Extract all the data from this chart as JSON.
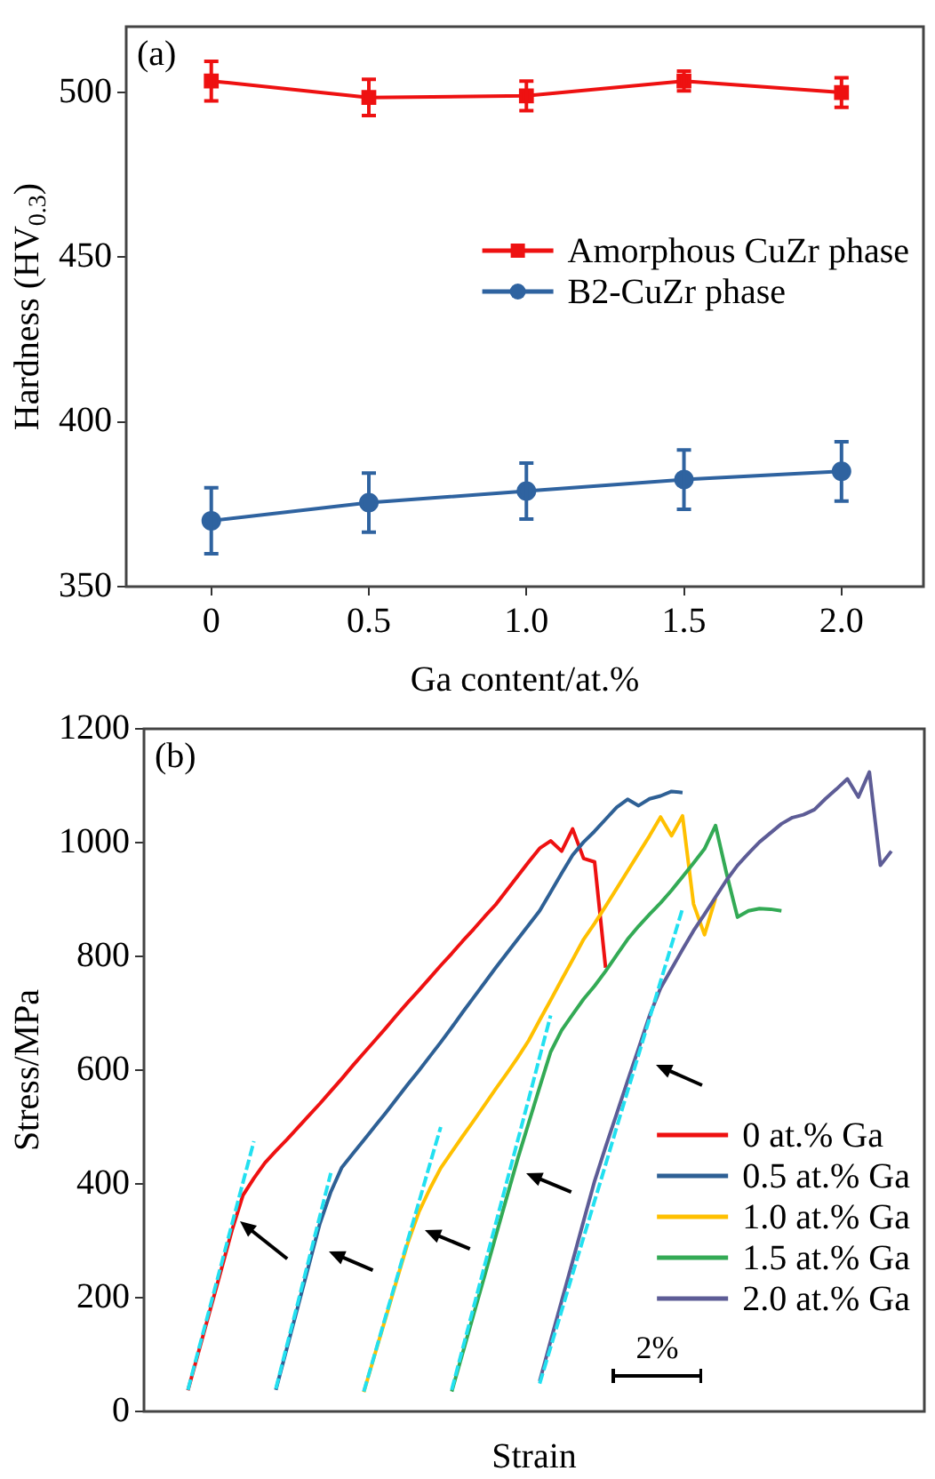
{
  "chart_data": [
    {
      "type": "line",
      "ylabel": "Hardness (HV$_{0.3}$)",
      "xlabel": "Ga content/at.%",
      "annotations": [
        "(a)"
      ],
      "x": [
        0,
        0.5,
        1,
        1.5,
        2
      ],
      "xlim": [
        -0.27,
        2.26
      ],
      "xticks": [
        0,
        0.5,
        {
          "value": 1,
          "label": "1.0"
        },
        1.5,
        {
          "value": 2,
          "label": "2.0"
        }
      ],
      "ylim": [
        350,
        520
      ],
      "yticks": [
        350,
        400,
        450,
        500
      ],
      "grid": false,
      "legend": "right",
      "series": [
        {
          "name": "Amorphous CuZr phase",
          "color": "#ee1111",
          "marker": "square",
          "values": [
            503.5,
            498.5,
            499,
            503.5,
            500
          ],
          "errors": [
            6,
            5.5,
            4.5,
            3,
            4.5
          ]
        },
        {
          "name": "B2-CuZr phase",
          "color": "#2f63a0",
          "marker": "circle",
          "values": [
            370,
            375.5,
            379,
            382.5,
            385
          ],
          "errors": [
            10,
            9,
            8.5,
            9,
            9
          ]
        }
      ]
    },
    {
      "type": "line",
      "ylabel": "Stress/MPa",
      "xlabel": "Strain",
      "annotations": [
        "(b)",
        "2%"
      ],
      "categories": [
        null,
        null,
        null,
        null,
        null,
        null,
        null,
        null,
        null,
        null,
        null,
        null,
        null,
        null,
        null,
        null,
        null,
        null,
        null,
        null,
        null,
        null,
        null,
        null,
        null,
        null,
        null,
        null,
        null,
        null,
        null,
        null,
        null,
        null,
        null,
        null,
        null,
        null,
        null,
        null,
        null,
        null,
        null,
        null,
        null,
        null,
        null,
        null,
        null,
        null,
        null,
        null,
        null,
        null,
        null,
        null,
        null,
        null,
        null,
        null,
        null,
        null,
        null,
        null,
        null,
        null,
        null,
        null,
        null,
        null,
        null,
        null
      ],
      "ylim": [
        0,
        1200
      ],
      "yticks": [
        0,
        200,
        400,
        600,
        800,
        1000,
        1200
      ],
      "tick_labels": "y",
      "grid": false,
      "legend": "bottom right",
      "series": [
        {
          "name": "0 at.% Ga",
          "color": "#ee1111",
          "values": [
            null,
            null,
            null,
            null,
            37,
            107,
            177,
            247,
            318,
            380,
            410,
            437,
            458,
            478,
            499,
            520,
            541,
            563,
            585,
            608,
            630,
            652,
            674,
            697,
            719,
            740,
            762,
            784,
            805,
            827,
            848,
            870,
            891,
            916,
            941,
            966,
            990,
            1003,
            985,
            1024,
            972,
            966,
            780,
            null,
            null,
            null,
            null,
            null,
            null,
            null,
            null,
            null,
            null,
            null,
            null,
            null,
            null,
            null,
            null,
            null,
            null,
            null,
            null,
            null,
            null,
            null,
            null,
            null,
            null,
            null,
            null,
            null
          ]
        },
        {
          "name": "0.5 at.% Ga",
          "color": "#2e6095",
          "values": [
            null,
            null,
            null,
            null,
            null,
            null,
            null,
            null,
            null,
            null,
            null,
            null,
            38,
            111,
            184,
            257,
            330,
            386,
            429,
            453,
            477,
            501,
            525,
            550,
            575,
            599,
            624,
            649,
            675,
            702,
            728,
            754,
            780,
            805,
            830,
            855,
            880,
            913,
            946,
            978,
            1001,
            1020,
            1041,
            1062,
            1076,
            1065,
            1077,
            1082,
            1090,
            1088,
            null,
            null,
            null,
            null,
            null,
            null,
            null,
            null,
            null,
            null,
            null,
            null,
            null,
            null,
            null,
            null,
            null,
            null,
            null,
            null,
            null,
            null
          ]
        },
        {
          "name": "1.0 at.% Ga",
          "color": "#ffc000",
          "values": [
            null,
            null,
            null,
            null,
            null,
            null,
            null,
            null,
            null,
            null,
            null,
            null,
            null,
            null,
            null,
            null,
            null,
            null,
            null,
            null,
            34,
            100,
            165,
            231,
            296,
            350,
            391,
            428,
            456,
            484,
            511,
            539,
            567,
            594,
            622,
            652,
            688,
            723,
            759,
            794,
            830,
            858,
            888,
            919,
            950,
            981,
            1012,
            1045,
            1012,
            1047,
            892,
            838,
            902,
            null,
            null,
            null,
            null,
            null,
            null,
            null,
            null,
            null,
            null,
            null,
            null,
            null,
            null,
            null,
            null,
            null,
            null,
            null
          ]
        },
        {
          "name": "1.5 at.% Ga",
          "color": "#33aa55",
          "values": [
            null,
            null,
            null,
            null,
            null,
            null,
            null,
            null,
            null,
            null,
            null,
            null,
            null,
            null,
            null,
            null,
            null,
            null,
            null,
            null,
            null,
            null,
            null,
            null,
            null,
            null,
            null,
            null,
            35,
            103,
            171,
            239,
            308,
            376,
            444,
            507,
            570,
            632,
            670,
            698,
            725,
            748,
            774,
            802,
            830,
            853,
            874,
            894,
            916,
            940,
            964,
            989,
            1030,
            946,
            869,
            880,
            884,
            883,
            880,
            null,
            null,
            null,
            null,
            null,
            null,
            null,
            null,
            null,
            null,
            null,
            null,
            null
          ]
        },
        {
          "name": "2.0 at.% Ga",
          "color": "#5d5c96",
          "values": [
            null,
            null,
            null,
            null,
            null,
            null,
            null,
            null,
            null,
            null,
            null,
            null,
            null,
            null,
            null,
            null,
            null,
            null,
            null,
            null,
            null,
            null,
            null,
            null,
            null,
            null,
            null,
            null,
            null,
            null,
            null,
            null,
            null,
            null,
            null,
            null,
            53,
            124,
            194,
            264,
            335,
            405,
            465,
            523,
            581,
            638,
            696,
            744,
            778,
            812,
            845,
            874,
            904,
            934,
            960,
            981,
            1001,
            1017,
            1033,
            1044,
            1049,
            1058,
            1077,
            1094,
            1112,
            1080,
            1124,
            960,
            985,
            null,
            null,
            null
          ]
        },
        {
          "color": "#22e0f0",
          "line_style": "dashed",
          "values": [
            null,
            null,
            null,
            null,
            38,
            111,
            183,
            256,
            329,
            402,
            475,
            null,
            null,
            null,
            null,
            null,
            null,
            null,
            null,
            null,
            null,
            null,
            null,
            null,
            null,
            null,
            null,
            null,
            null,
            null,
            null,
            null,
            null,
            null,
            null,
            null,
            null,
            null,
            null,
            null,
            null,
            null,
            null,
            null,
            null,
            null,
            null,
            null,
            null,
            null,
            null,
            null,
            null,
            null,
            null,
            null,
            null,
            null,
            null,
            null,
            null,
            null,
            null,
            null,
            null,
            null,
            null,
            null,
            null,
            null,
            null,
            null
          ]
        },
        {
          "color": "#22e0f0",
          "line_style": "dashed",
          "values": [
            null,
            null,
            null,
            null,
            null,
            null,
            null,
            null,
            null,
            null,
            null,
            null,
            40,
            116,
            191,
            267,
            343,
            419,
            null,
            null,
            null,
            null,
            null,
            null,
            null,
            null,
            null,
            null,
            null,
            null,
            null,
            null,
            null,
            null,
            null,
            null,
            null,
            null,
            null,
            null,
            null,
            null,
            null,
            null,
            null,
            null,
            null,
            null,
            null,
            null,
            null,
            null,
            null,
            null,
            null,
            null,
            null,
            null,
            null,
            null,
            null,
            null,
            null,
            null,
            null,
            null,
            null,
            null,
            null,
            null,
            null,
            null
          ]
        },
        {
          "color": "#22e0f0",
          "line_style": "dashed",
          "values": [
            null,
            null,
            null,
            null,
            null,
            null,
            null,
            null,
            null,
            null,
            null,
            null,
            null,
            null,
            null,
            null,
            null,
            null,
            null,
            null,
            35,
            101,
            168,
            234,
            301,
            367,
            434,
            500,
            null,
            null,
            null,
            null,
            null,
            null,
            null,
            null,
            null,
            null,
            null,
            null,
            null,
            null,
            null,
            null,
            null,
            null,
            null,
            null,
            null,
            null,
            null,
            null,
            null,
            null,
            null,
            null,
            null,
            null,
            null,
            null,
            null,
            null,
            null,
            null,
            null,
            null,
            null,
            null,
            null,
            null,
            null,
            null
          ]
        },
        {
          "color": "#22e0f0",
          "line_style": "dashed",
          "values": [
            null,
            null,
            null,
            null,
            null,
            null,
            null,
            null,
            null,
            null,
            null,
            null,
            null,
            null,
            null,
            null,
            null,
            null,
            null,
            null,
            null,
            null,
            null,
            null,
            null,
            null,
            null,
            null,
            38,
            111,
            184,
            257,
            330,
            403,
            476,
            549,
            623,
            696,
            null,
            null,
            null,
            null,
            null,
            null,
            null,
            null,
            null,
            null,
            null,
            null,
            null,
            null,
            null,
            null,
            null,
            null,
            null,
            null,
            null,
            null,
            null,
            null,
            null,
            null,
            null,
            null,
            null,
            null,
            null,
            null,
            null,
            null
          ]
        },
        {
          "color": "#22e0f0",
          "line_style": "dashed",
          "values": [
            null,
            null,
            null,
            null,
            null,
            null,
            null,
            null,
            null,
            null,
            null,
            null,
            null,
            null,
            null,
            null,
            null,
            null,
            null,
            null,
            null,
            null,
            null,
            null,
            null,
            null,
            null,
            null,
            null,
            null,
            null,
            null,
            null,
            null,
            null,
            null,
            49,
            113,
            177,
            242,
            306,
            370,
            434,
            499,
            563,
            627,
            691,
            756,
            820,
            884,
            null,
            null,
            null,
            null,
            null,
            null,
            null,
            null,
            null,
            null,
            null,
            null,
            null,
            null,
            null,
            null,
            null,
            null,
            null,
            null,
            null,
            null
          ]
        }
      ]
    }
  ]
}
